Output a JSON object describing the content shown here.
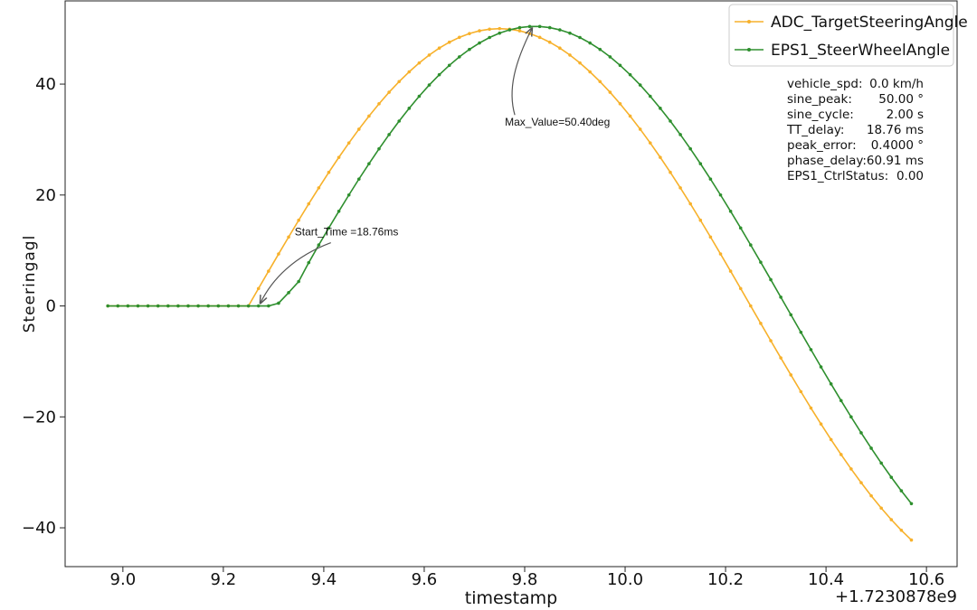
{
  "chart_data": {
    "type": "line",
    "x_label": "timestamp",
    "y_label": "Steeringagl",
    "x_offset_text": "+1.7230878e9",
    "x": [
      8.97,
      8.99,
      9.01,
      9.03,
      9.05,
      9.07,
      9.09,
      9.11,
      9.13,
      9.15,
      9.17,
      9.19,
      9.21,
      9.23,
      9.25,
      9.27,
      9.29,
      9.31,
      9.33,
      9.35,
      9.37,
      9.39,
      9.41,
      9.43,
      9.45,
      9.47,
      9.49,
      9.51,
      9.53,
      9.55,
      9.57,
      9.59,
      9.61,
      9.63,
      9.65,
      9.67,
      9.69,
      9.71,
      9.73,
      9.75,
      9.77,
      9.79,
      9.81,
      9.83,
      9.85,
      9.87,
      9.89,
      9.91,
      9.93,
      9.95,
      9.97,
      9.99,
      10.01,
      10.03,
      10.05,
      10.07,
      10.09,
      10.11,
      10.13,
      10.15,
      10.17,
      10.19,
      10.21,
      10.23,
      10.25,
      10.27,
      10.29,
      10.31,
      10.33,
      10.35,
      10.37,
      10.39,
      10.41,
      10.43,
      10.45,
      10.47,
      10.49,
      10.51,
      10.53,
      10.55,
      10.57
    ],
    "series": [
      {
        "name": "ADC_TargetSteeringAngle",
        "color": "#f7b12b",
        "values": [
          0,
          0,
          0,
          0,
          0,
          0,
          0,
          0,
          0,
          0,
          0,
          0,
          0,
          0,
          0,
          3.14,
          6.27,
          9.37,
          12.43,
          15.45,
          18.41,
          21.29,
          24.09,
          26.79,
          29.39,
          31.87,
          34.23,
          36.45,
          38.53,
          40.45,
          42.21,
          43.82,
          45.24,
          46.49,
          47.55,
          48.43,
          49.11,
          49.61,
          49.9,
          50,
          49.9,
          49.61,
          49.11,
          48.43,
          47.55,
          46.49,
          45.24,
          43.82,
          42.21,
          40.45,
          38.53,
          36.45,
          34.23,
          31.87,
          29.39,
          26.79,
          24.09,
          21.29,
          18.41,
          15.45,
          12.43,
          9.37,
          6.27,
          3.14,
          0,
          -3.14,
          -6.27,
          -9.37,
          -12.43,
          -15.45,
          -18.41,
          -21.29,
          -24.09,
          -26.79,
          -29.39,
          -31.87,
          -34.23,
          -36.45,
          -38.53,
          -40.45,
          -42.21
        ]
      },
      {
        "name": "EPS1_SteerWheelAngle",
        "color": "#2e8f2e",
        "values": [
          0,
          0,
          0,
          0,
          0,
          0,
          0,
          0,
          0,
          0,
          0,
          0,
          0,
          0,
          0,
          0,
          0,
          0.5,
          2.4,
          4.4,
          7.8,
          10.99,
          14.06,
          17.07,
          20.01,
          22.88,
          25.65,
          28.33,
          30.89,
          33.33,
          35.64,
          37.81,
          39.83,
          41.69,
          43.38,
          44.91,
          46.26,
          47.42,
          48.4,
          49.19,
          49.78,
          50.18,
          50.38,
          50.38,
          50.18,
          49.78,
          49.19,
          48.4,
          47.42,
          46.26,
          44.91,
          43.38,
          41.69,
          39.83,
          37.81,
          35.64,
          33.33,
          30.89,
          28.33,
          25.65,
          22.88,
          20.01,
          17.07,
          14.06,
          10.99,
          7.88,
          4.74,
          1.58,
          -1.58,
          -4.74,
          -7.88,
          -10.99,
          -14.06,
          -17.07,
          -20.01,
          -22.88,
          -25.65,
          -28.33,
          -30.89,
          -33.33,
          -35.64
        ]
      }
    ],
    "xlim": [
      8.885,
      10.661
    ],
    "ylim": [
      -47,
      55
    ],
    "xticks": [
      {
        "value": 9.0,
        "label": "9.0"
      },
      9.2,
      9.4,
      9.6,
      9.8,
      {
        "value": 10.0,
        "label": "10.0"
      },
      10.2,
      10.4,
      10.6
    ],
    "yticks": [
      {
        "value": -40,
        "label": "−40"
      },
      {
        "value": -20,
        "label": "−20"
      },
      0,
      20,
      40
    ],
    "legend": "upper right",
    "annotations": [
      {
        "text": "Max_Value=50.40deg",
        "x": 9.82,
        "y": 50.4
      },
      {
        "text": "Start_Time =18.76ms",
        "x": 9.27,
        "y": 0
      }
    ],
    "stats": [
      {
        "label": "vehicle_spd:",
        "value": "0.0 km/h"
      },
      {
        "label": "sine_peak:",
        "value": "50.00 °"
      },
      {
        "label": "sine_cycle:",
        "value": "2.00 s"
      },
      {
        "label": "TT_delay:",
        "value": "18.76 ms"
      },
      {
        "label": "peak_error:",
        "value": "0.4000 °"
      },
      {
        "label": "phase_delay:",
        "value": "60.91 ms"
      },
      {
        "label": "EPS1_CtrlStatus:",
        "value": "0.00"
      }
    ]
  }
}
